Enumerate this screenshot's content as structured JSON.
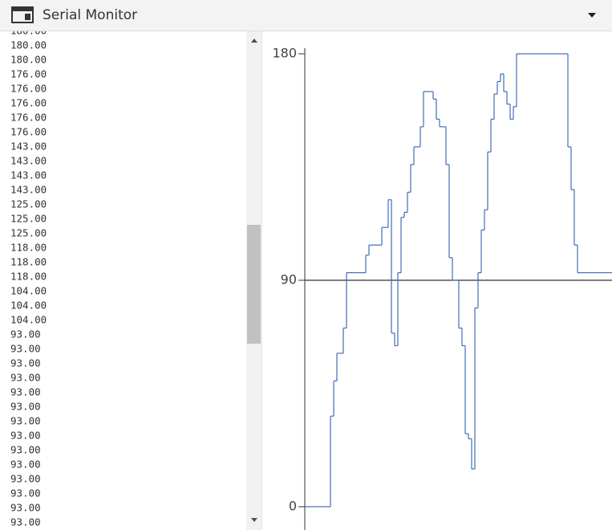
{
  "header": {
    "title": "Serial Monitor"
  },
  "log": {
    "lines": [
      "180.00",
      "180.00",
      "180.00",
      "176.00",
      "176.00",
      "176.00",
      "176.00",
      "176.00",
      "143.00",
      "143.00",
      "143.00",
      "143.00",
      "125.00",
      "125.00",
      "125.00",
      "118.00",
      "118.00",
      "118.00",
      "104.00",
      "104.00",
      "104.00",
      "93.00",
      "93.00",
      "93.00",
      "93.00",
      "93.00",
      "93.00",
      "93.00",
      "93.00",
      "93.00",
      "93.00",
      "93.00",
      "93.00",
      "93.00",
      "93.00"
    ]
  },
  "chart_data": {
    "type": "line",
    "step": true,
    "color": "#3f6fb5",
    "values": [
      0,
      0,
      0,
      0,
      0,
      0,
      0,
      0,
      36,
      50,
      61,
      61,
      71,
      93,
      93,
      93,
      93,
      93,
      93,
      100,
      104,
      104,
      104,
      104,
      111,
      111,
      122,
      69,
      64,
      93,
      115,
      117,
      125,
      136,
      143,
      143,
      151,
      165,
      165,
      165,
      162,
      154,
      151,
      151,
      136,
      99,
      90,
      90,
      71,
      64,
      29,
      27,
      15,
      79,
      93,
      110,
      118,
      141,
      154,
      164,
      169,
      172,
      165,
      160,
      154,
      159,
      180,
      180,
      180,
      180,
      180,
      180,
      180,
      180,
      180,
      180,
      180,
      180,
      180,
      180,
      180,
      180,
      143,
      126,
      104,
      93,
      93,
      93,
      93,
      93,
      93,
      93,
      93,
      93,
      93,
      93
    ],
    "ylim": [
      0,
      180
    ],
    "yticks": [
      0,
      90,
      180
    ],
    "hline": 90
  }
}
